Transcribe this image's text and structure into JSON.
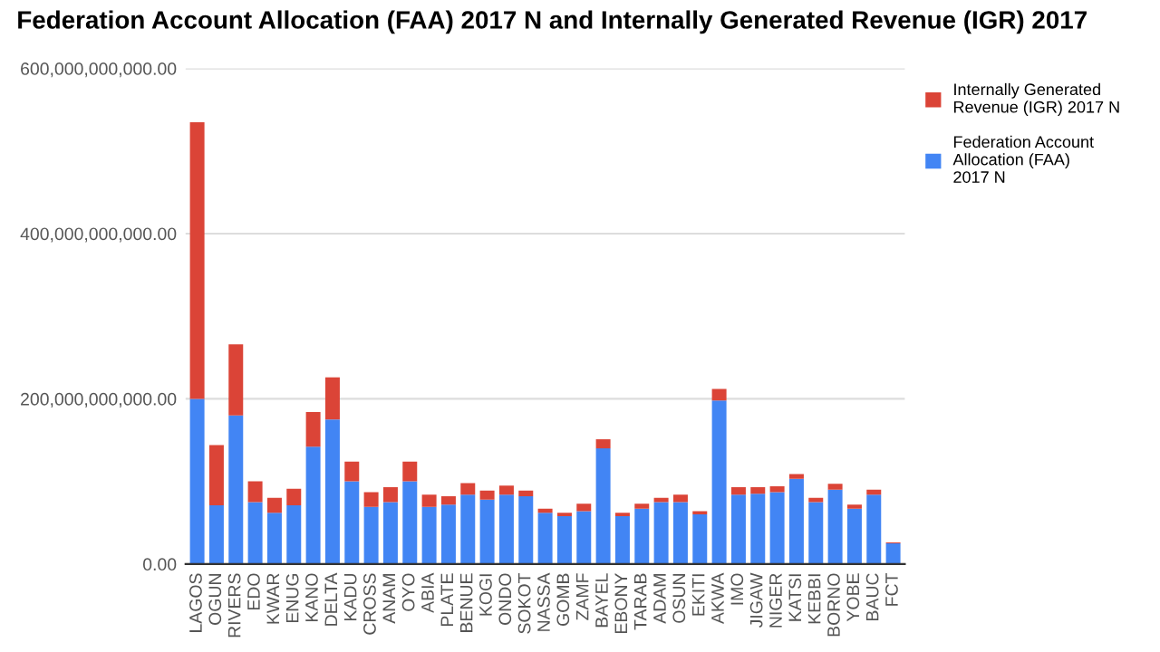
{
  "chart_data": {
    "type": "bar",
    "stacked": true,
    "title": "Federation Account Allocation (FAA) 2017 N and Internally Generated Revenue (IGR) 2017",
    "categories": [
      "LAGOS",
      "OGUN",
      "RIVERS",
      "EDO",
      "KWAR",
      "ENUG",
      "KANO",
      "DELTA",
      "KADU",
      "CROSS",
      "ANAM",
      "OYO",
      "ABIA",
      "PLATE",
      "BENUE",
      "KOGI",
      "ONDO",
      "SOKOT",
      "NASSA",
      "GOMB",
      "ZAMF",
      "BAYEL",
      "EBONY",
      "TARAB",
      "ADAM",
      "OSUN",
      "EKITI",
      "AKWA",
      "IMO",
      "JIGAW",
      "NIGER",
      "KATSI",
      "KEBBI",
      "BORNO",
      "YOBE",
      "BAUC",
      "FCT"
    ],
    "series": [
      {
        "name": "Federation Account\nAllocation (FAA)\n2017 N",
        "color": "#4285f4",
        "values": [
          200000000000.0,
          71000000000.0,
          180000000000.0,
          75000000000.0,
          62000000000.0,
          71000000000.0,
          142000000000.0,
          175000000000.0,
          100000000000.0,
          69000000000.0,
          75000000000.0,
          100000000000.0,
          69000000000.0,
          72000000000.0,
          84000000000.0,
          78000000000.0,
          84000000000.0,
          82000000000.0,
          62000000000.0,
          58000000000.0,
          64000000000.0,
          140000000000.0,
          58000000000.0,
          67000000000.0,
          75000000000.0,
          75000000000.0,
          60000000000.0,
          198000000000.0,
          84000000000.0,
          85000000000.0,
          87000000000.0,
          103000000000.0,
          75000000000.0,
          90000000000.0,
          67000000000.0,
          84000000000.0,
          25000000000.0
        ]
      },
      {
        "name": "Internally Generated\nRevenue (IGR) 2017 N",
        "color": "#db4437",
        "values": [
          335000000000.0,
          73000000000.0,
          86000000000.0,
          25000000000.0,
          18000000000.0,
          20000000000.0,
          42000000000.0,
          51000000000.0,
          24000000000.0,
          18000000000.0,
          18000000000.0,
          24000000000.0,
          15000000000.0,
          10000000000.0,
          14000000000.0,
          11000000000.0,
          11000000000.0,
          7000000000.0,
          5000000000.0,
          4000000000.0,
          9000000000.0,
          11000000000.0,
          4000000000.0,
          6000000000.0,
          5000000000.0,
          9000000000.0,
          4000000000.0,
          14000000000.0,
          9000000000.0,
          8000000000.0,
          7000000000.0,
          6000000000.0,
          5000000000.0,
          7000000000.0,
          5000000000.0,
          6000000000.0,
          1000000000.0
        ]
      }
    ],
    "ylim": [
      0,
      600000000000.0
    ],
    "yticks": [
      {
        "value": 0,
        "label": "0.00"
      },
      {
        "value": 200000000000.0,
        "label": "200,000,000,000.00"
      },
      {
        "value": 400000000000.0,
        "label": "400,000,000,000.00"
      },
      {
        "value": 600000000000.0,
        "label": "600,000,000,000.00"
      }
    ],
    "grid": "y",
    "legend": "top right"
  }
}
